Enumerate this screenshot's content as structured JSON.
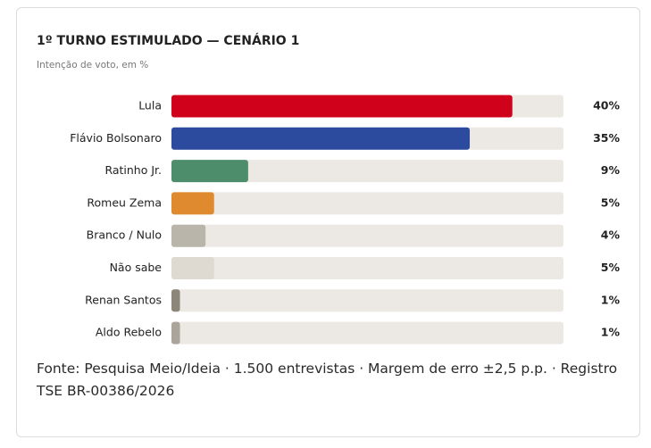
{
  "chart_data": {
    "type": "bar",
    "orientation": "horizontal",
    "title": "1º TURNO ESTIMULADO — CENÁRIO 1",
    "subtitle": "Intenção de voto, em %",
    "categories": [
      "Lula",
      "Flávio Bolsonaro",
      "Ratinho Jr.",
      "Romeu Zema",
      "Branco / Nulo",
      "Não sabe",
      "Renan Santos",
      "Aldo Rebelo"
    ],
    "values": [
      40,
      35,
      9,
      5,
      4,
      5,
      1,
      1
    ],
    "value_labels": [
      "40%",
      "35%",
      "9%",
      "5%",
      "4%",
      "5%",
      "1%",
      "1%"
    ],
    "colors": [
      "#d0021b",
      "#2c4a9e",
      "#4e8d6c",
      "#df8a2e",
      "#b9b5aa",
      "#dedad2",
      "#8c8579",
      "#aaa49a"
    ],
    "track_color": "#ece8e3",
    "xlim": [
      0,
      46
    ],
    "source": "Fonte: Pesquisa Meio/Ideia · 1.500 entrevistas · Margem de erro ±2,5 p.p. · Registro TSE BR-00386/2026"
  }
}
